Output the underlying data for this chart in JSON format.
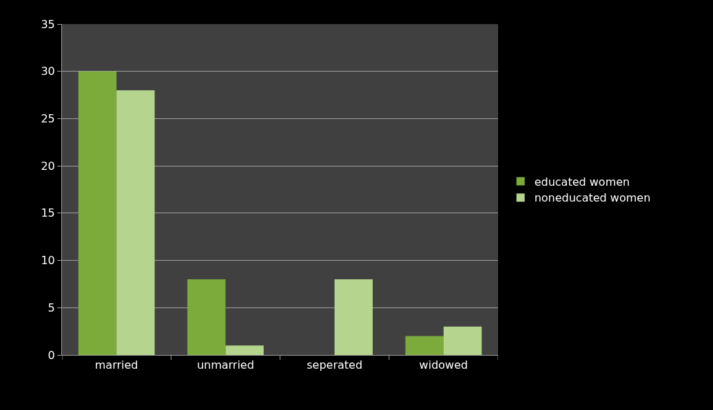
{
  "chart_data": {
    "type": "bar",
    "categories": [
      "married",
      "unmarried",
      "seperated",
      "widowed"
    ],
    "series": [
      {
        "name": "educated women",
        "color": "#7cab3c",
        "values": [
          30,
          8,
          0,
          2
        ]
      },
      {
        "name": "noneducated women",
        "color": "#b5d58e",
        "values": [
          28,
          1,
          8,
          3
        ]
      }
    ],
    "ylim": [
      0,
      35
    ],
    "yticks": [
      0,
      5,
      10,
      15,
      20,
      25,
      30,
      35
    ],
    "grid": "y",
    "legend": "right"
  }
}
